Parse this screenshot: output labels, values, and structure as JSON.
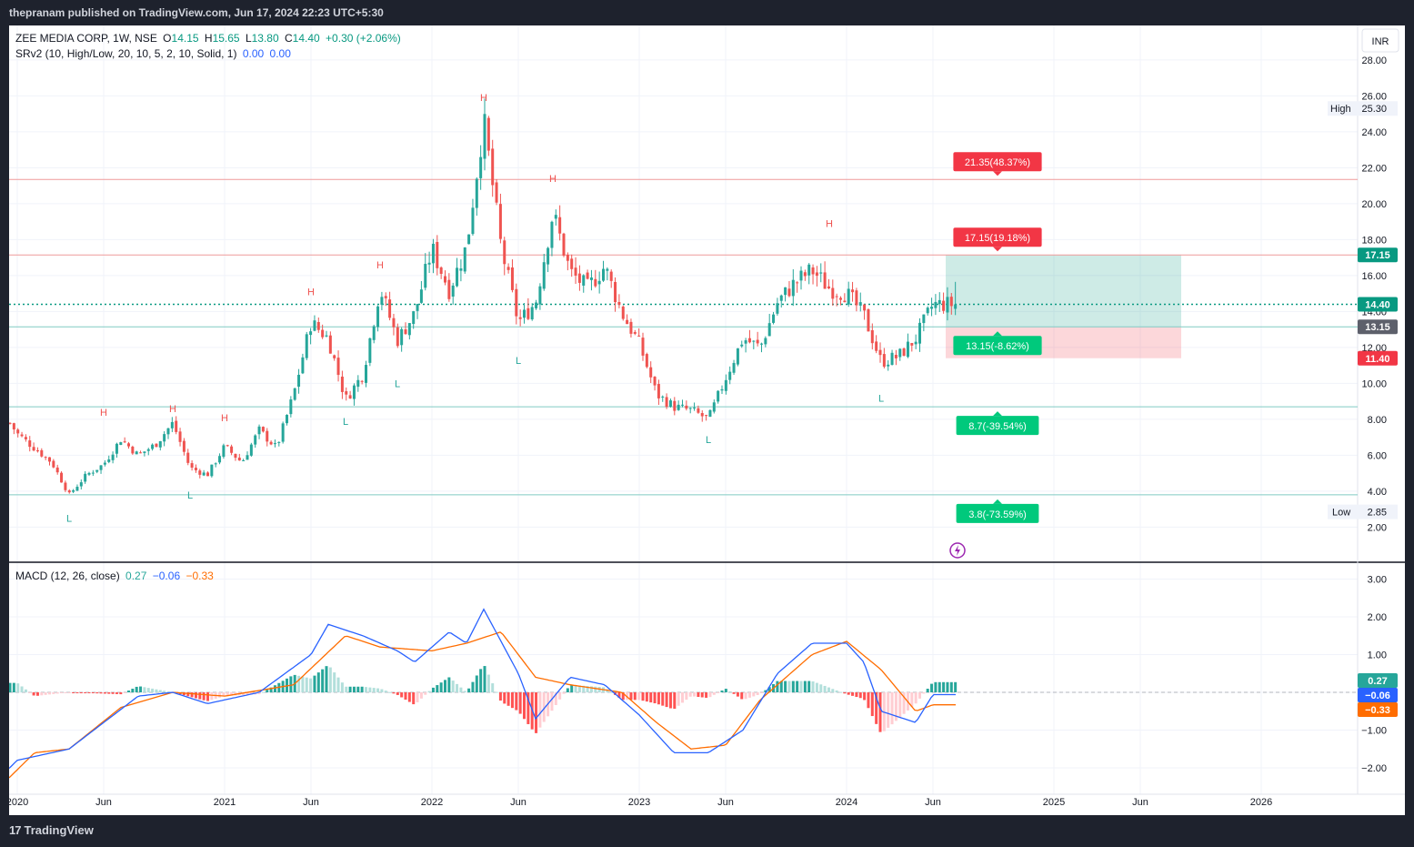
{
  "header": {
    "published_text": "thepranam published on TradingView.com, Jun 17, 2024 22:23 UTC+5:30"
  },
  "footer": {
    "brand": "TradingView",
    "logo_mark": "17"
  },
  "currency": "INR",
  "main_legend": {
    "symbol": "ZEE MEDIA CORP, 1W, NSE",
    "o_label": "O",
    "o_value": "14.15",
    "h_label": "H",
    "h_value": "15.65",
    "l_label": "L",
    "l_value": "13.80",
    "c_label": "C",
    "c_value": "14.40",
    "change": "+0.30 (+2.06%)",
    "indicator_name": "SRv2 (10, High/Low, 20, 10, 5, 2, 10, Solid, 1)",
    "indicator_v1": "0.00",
    "indicator_v2": "0.00"
  },
  "macd_legend": {
    "name": "MACD (12, 26, close)",
    "hist": "0.27",
    "macd": "−0.06",
    "signal": "−0.33"
  },
  "colors": {
    "up": "#26a69a",
    "down": "#ef5350",
    "macd_line": "#2962ff",
    "signal_line": "#ff6d00",
    "hist_up_strong": "#26a69a",
    "hist_up_weak": "#b2dfdb",
    "hist_down_strong": "#ff5252",
    "hist_down_weak": "#ffcdd2"
  },
  "chart_data": [
    {
      "type": "candlestick",
      "title": "ZEE MEDIA CORP, 1W, NSE",
      "x_ticks": [
        "2020",
        "Jun",
        "2021",
        "Jun",
        "2022",
        "Jun",
        "2023",
        "Jun",
        "2024",
        "Jun",
        "2025",
        "Jun",
        "2026"
      ],
      "y_ticks": [
        "2.00",
        "4.00",
        "6.00",
        "8.00",
        "10.00",
        "12.00",
        "14.00",
        "16.00",
        "18.00",
        "20.00",
        "22.00",
        "24.00",
        "26.00",
        "28.00"
      ],
      "ylim": [
        1.2,
        29.8
      ],
      "ohlc_close_path": [
        [
          "2019-12",
          8.6
        ],
        [
          "2020-01",
          7.2
        ],
        [
          "2020-02",
          6.4
        ],
        [
          "2020-03",
          5.6
        ],
        [
          "2020-04",
          3.8
        ],
        [
          "2020-05",
          4.9
        ],
        [
          "2020-06",
          5.5
        ],
        [
          "2020-07",
          6.9
        ],
        [
          "2020-08",
          6.0
        ],
        [
          "2020-09",
          6.6
        ],
        [
          "2020-10",
          7.8
        ],
        [
          "2020-11",
          5.3
        ],
        [
          "2020-12",
          4.9
        ],
        [
          "2021-01",
          6.5
        ],
        [
          "2021-02",
          5.6
        ],
        [
          "2021-03",
          7.4
        ],
        [
          "2021-04",
          6.4
        ],
        [
          "2021-05",
          9.4
        ],
        [
          "2021-06",
          13.4
        ],
        [
          "2021-07",
          12.5
        ],
        [
          "2021-08",
          9.1
        ],
        [
          "2021-09",
          10.5
        ],
        [
          "2021-10",
          15.3
        ],
        [
          "2021-11",
          12.4
        ],
        [
          "2021-12",
          13.9
        ],
        [
          "2022-01",
          17.5
        ],
        [
          "2022-02",
          15.2
        ],
        [
          "2022-03",
          17.6
        ],
        [
          "2022-04",
          24.6
        ],
        [
          "2022-05",
          17.6
        ],
        [
          "2022-06",
          13.4
        ],
        [
          "2022-07",
          14.5
        ],
        [
          "2022-08",
          19.5
        ],
        [
          "2022-09",
          16.2
        ],
        [
          "2022-10",
          15.3
        ],
        [
          "2022-11",
          16.5
        ],
        [
          "2022-12",
          13.9
        ],
        [
          "2023-01",
          12.2
        ],
        [
          "2023-02",
          9.4
        ],
        [
          "2023-03",
          8.7
        ],
        [
          "2023-04",
          8.5
        ],
        [
          "2023-05",
          8.0
        ],
        [
          "2023-06",
          10.3
        ],
        [
          "2023-07",
          12.5
        ],
        [
          "2023-08",
          12.0
        ],
        [
          "2023-09",
          14.5
        ],
        [
          "2023-10",
          15.6
        ],
        [
          "2023-11",
          16.3
        ],
        [
          "2023-12",
          15.3
        ],
        [
          "2024-01",
          15.0
        ],
        [
          "2024-02",
          13.8
        ],
        [
          "2024-03",
          11.2
        ],
        [
          "2024-04",
          11.5
        ],
        [
          "2024-05",
          12.5
        ],
        [
          "2024-06",
          14.4
        ]
      ],
      "pivot_labels": [
        {
          "type": "H",
          "date": "2020-06",
          "value": 7.8
        },
        {
          "type": "H",
          "date": "2020-10",
          "value": 8.0
        },
        {
          "type": "H",
          "date": "2021-01",
          "value": 7.5
        },
        {
          "type": "H",
          "date": "2021-06",
          "value": 14.5
        },
        {
          "type": "H",
          "date": "2021-10",
          "value": 16.0
        },
        {
          "type": "H",
          "date": "2022-04",
          "value": 25.3
        },
        {
          "type": "H",
          "date": "2022-08",
          "value": 20.8
        },
        {
          "type": "H",
          "date": "2023-12",
          "value": 18.3
        },
        {
          "type": "L",
          "date": "2020-04",
          "value": 3.0
        },
        {
          "type": "L",
          "date": "2020-11",
          "value": 4.3
        },
        {
          "type": "L",
          "date": "2021-08",
          "value": 8.4
        },
        {
          "type": "L",
          "date": "2021-11",
          "value": 10.5
        },
        {
          "type": "L",
          "date": "2022-06",
          "value": 11.8
        },
        {
          "type": "L",
          "date": "2023-05",
          "value": 7.4
        },
        {
          "type": "L",
          "date": "2024-03",
          "value": 9.7
        }
      ],
      "pivot_texts": [
        "H",
        "H",
        "H",
        "H",
        "H",
        "H",
        "H",
        "H",
        "L",
        "L",
        "L",
        "L",
        "L",
        "L",
        "L"
      ],
      "levels": [
        {
          "value": 21.35,
          "label": "21.35(48.37%)",
          "kind": "resistance"
        },
        {
          "value": 17.15,
          "label": "17.15(19.18%)",
          "kind": "resistance"
        },
        {
          "value": 13.15,
          "label": "13.15(-8.62%)",
          "kind": "support"
        },
        {
          "value": 8.7,
          "label": "8.7(-39.54%)",
          "kind": "support"
        },
        {
          "value": 3.8,
          "label": "3.8(-73.59%)",
          "kind": "support"
        }
      ],
      "price_tags": [
        {
          "value": 17.15,
          "text": "17.15",
          "color": "#089981"
        },
        {
          "value": 14.4,
          "text": "14.40",
          "color": "#089981"
        },
        {
          "value": 13.15,
          "text": "13.15",
          "color": "#5d606b"
        },
        {
          "value": 11.4,
          "text": "11.40",
          "color": "#f23645"
        }
      ],
      "high_label": {
        "label": "High",
        "value": "25.30"
      },
      "low_label": {
        "label": "Low",
        "value": "2.85"
      },
      "last_price": 14.4,
      "position": {
        "entry": 13.15,
        "target": 17.15,
        "stop": 11.4
      }
    },
    {
      "type": "macd",
      "title": "MACD (12, 26, close)",
      "y_ticks": [
        "−2.00",
        "−1.00",
        "0.00",
        "1.00",
        "2.00",
        "3.00"
      ],
      "ylim": [
        -2.65,
        3.25
      ],
      "macd_path": [
        [
          "2019-12",
          -2.25
        ],
        [
          "2020-01",
          -1.8
        ],
        [
          "2020-03",
          -1.6
        ],
        [
          "2020-04",
          -1.5
        ],
        [
          "2020-06",
          -0.8
        ],
        [
          "2020-08",
          -0.1
        ],
        [
          "2020-10",
          0.0
        ],
        [
          "2020-12",
          -0.3
        ],
        [
          "2021-03",
          0.0
        ],
        [
          "2021-06",
          1.0
        ],
        [
          "2021-07",
          1.8
        ],
        [
          "2021-09",
          1.5
        ],
        [
          "2021-11",
          1.1
        ],
        [
          "2021-12",
          0.8
        ],
        [
          "2022-02",
          1.6
        ],
        [
          "2022-03",
          1.3
        ],
        [
          "2022-04",
          2.2
        ],
        [
          "2022-06",
          0.5
        ],
        [
          "2022-07",
          -0.7
        ],
        [
          "2022-09",
          0.4
        ],
        [
          "2022-11",
          0.2
        ],
        [
          "2023-01",
          -0.6
        ],
        [
          "2023-03",
          -1.6
        ],
        [
          "2023-05",
          -1.6
        ],
        [
          "2023-07",
          -1.0
        ],
        [
          "2023-09",
          0.5
        ],
        [
          "2023-11",
          1.3
        ],
        [
          "2024-01",
          1.3
        ],
        [
          "2024-02",
          0.8
        ],
        [
          "2024-03",
          -0.5
        ],
        [
          "2024-05",
          -0.8
        ],
        [
          "2024-06",
          -0.06
        ]
      ],
      "signal_path": [
        [
          "2019-12",
          -2.5
        ],
        [
          "2020-02",
          -1.6
        ],
        [
          "2020-04",
          -1.5
        ],
        [
          "2020-07",
          -0.4
        ],
        [
          "2020-10",
          0.0
        ],
        [
          "2021-01",
          -0.1
        ],
        [
          "2021-05",
          0.2
        ],
        [
          "2021-08",
          1.5
        ],
        [
          "2021-10",
          1.2
        ],
        [
          "2022-01",
          1.1
        ],
        [
          "2022-03",
          1.3
        ],
        [
          "2022-05",
          1.6
        ],
        [
          "2022-07",
          0.4
        ],
        [
          "2022-09",
          0.2
        ],
        [
          "2022-12",
          0.0
        ],
        [
          "2023-02",
          -0.8
        ],
        [
          "2023-04",
          -1.5
        ],
        [
          "2023-06",
          -1.4
        ],
        [
          "2023-08",
          -0.2
        ],
        [
          "2023-11",
          1.0
        ],
        [
          "2024-01",
          1.35
        ],
        [
          "2024-03",
          0.6
        ],
        [
          "2024-05",
          -0.5
        ],
        [
          "2024-06",
          -0.33
        ]
      ],
      "histogram_last": 0.27,
      "value_tags": [
        {
          "value": 0.27,
          "text": "0.27",
          "color": "#26a69a"
        },
        {
          "value": -0.06,
          "text": "−0.06",
          "color": "#2962ff"
        },
        {
          "value": -0.33,
          "text": "−0.33",
          "color": "#ff6d00"
        }
      ]
    }
  ]
}
